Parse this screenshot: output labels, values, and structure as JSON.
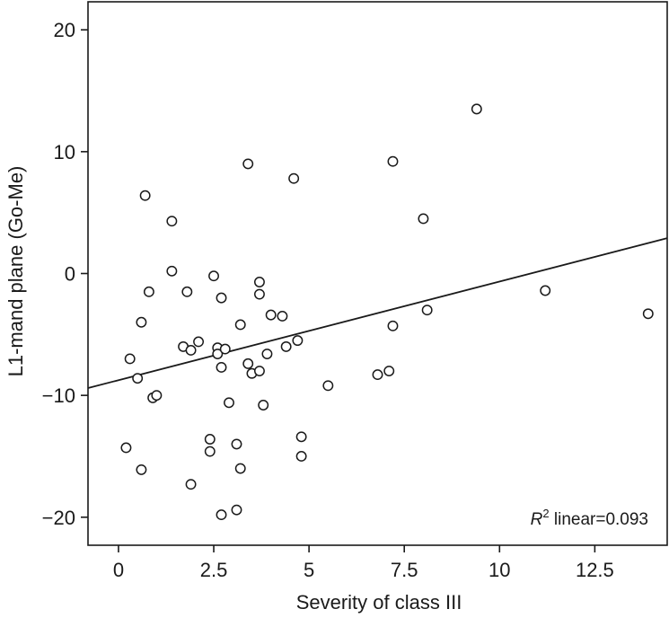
{
  "chart_data": {
    "type": "scatter",
    "title": "",
    "xlabel": "Severity of class III",
    "ylabel": "L1-mand plane (Go-Me)",
    "xlim": [
      -0.8,
      14.4
    ],
    "ylim": [
      -22.3,
      22.3
    ],
    "xticks": [
      0,
      2.5,
      5,
      7.5,
      10,
      12.5
    ],
    "xtick_labels": [
      "0",
      "2.5",
      "5",
      "7.5",
      "10",
      "12.5"
    ],
    "yticks": [
      -20,
      -10,
      0,
      10,
      20
    ],
    "ytick_labels": [
      "−20",
      "−10",
      "0",
      "10",
      "20"
    ],
    "grid": false,
    "series": [
      {
        "name": "observations",
        "marker": "open-circle",
        "points": [
          [
            0.2,
            -14.3
          ],
          [
            0.3,
            -7.0
          ],
          [
            0.5,
            -8.6
          ],
          [
            0.6,
            -4.0
          ],
          [
            0.6,
            -16.1
          ],
          [
            0.7,
            6.4
          ],
          [
            0.8,
            -1.5
          ],
          [
            0.9,
            -10.2
          ],
          [
            1.0,
            -10.0
          ],
          [
            1.4,
            4.3
          ],
          [
            1.4,
            0.2
          ],
          [
            1.7,
            -6.0
          ],
          [
            1.8,
            -1.5
          ],
          [
            1.9,
            -6.3
          ],
          [
            1.9,
            -17.3
          ],
          [
            2.1,
            -5.6
          ],
          [
            2.4,
            -13.6
          ],
          [
            2.4,
            -14.6
          ],
          [
            2.5,
            -0.2
          ],
          [
            2.6,
            -6.1
          ],
          [
            2.6,
            -6.6
          ],
          [
            2.7,
            -7.7
          ],
          [
            2.7,
            -2.0
          ],
          [
            2.8,
            -6.2
          ],
          [
            2.7,
            -19.8
          ],
          [
            2.9,
            -10.6
          ],
          [
            3.1,
            -14.0
          ],
          [
            3.1,
            -19.4
          ],
          [
            3.2,
            -4.2
          ],
          [
            3.2,
            -16.0
          ],
          [
            3.4,
            -7.4
          ],
          [
            3.4,
            9.0
          ],
          [
            3.5,
            -8.2
          ],
          [
            3.7,
            -0.7
          ],
          [
            3.7,
            -1.7
          ],
          [
            3.7,
            -8.0
          ],
          [
            3.8,
            -10.8
          ],
          [
            3.9,
            -6.6
          ],
          [
            4.0,
            -3.4
          ],
          [
            4.3,
            -3.5
          ],
          [
            4.4,
            -6.0
          ],
          [
            4.6,
            7.8
          ],
          [
            4.7,
            -5.5
          ],
          [
            4.8,
            -13.4
          ],
          [
            4.8,
            -15.0
          ],
          [
            5.5,
            -9.2
          ],
          [
            6.8,
            -8.3
          ],
          [
            7.1,
            -8.0
          ],
          [
            7.2,
            9.2
          ],
          [
            7.2,
            -4.3
          ],
          [
            8.0,
            4.5
          ],
          [
            8.1,
            -3.0
          ],
          [
            9.4,
            13.5
          ],
          [
            11.2,
            -1.4
          ],
          [
            13.9,
            -3.3
          ]
        ]
      }
    ],
    "fit_line": {
      "type": "linear",
      "points": [
        [
          -0.8,
          -9.4
        ],
        [
          14.4,
          2.9
        ]
      ]
    },
    "annotation": {
      "r_label": "R",
      "r_superscript": "2",
      "r_text": " linear=0.093",
      "placement": "bottom-right"
    }
  }
}
